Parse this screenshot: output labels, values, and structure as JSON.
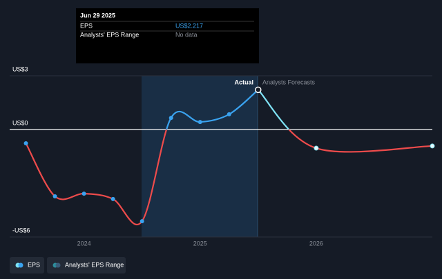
{
  "chart_data": {
    "type": "line",
    "ylim": [
      -6,
      3
    ],
    "yticks": [
      {
        "value": 3,
        "label": "US$3"
      },
      {
        "value": 0,
        "label": "US$0"
      },
      {
        "value": -6,
        "label": "-US$6"
      }
    ],
    "xlim": [
      2023.36,
      2027.0
    ],
    "xticks": [
      2024,
      2025,
      2026
    ],
    "grid": true,
    "annotations": [
      "Actual",
      "Analysts Forecasts"
    ],
    "series": [
      {
        "name": "EPS",
        "color": "#3aa3f0",
        "negative_color": "#ee4b4b",
        "x": [
          2023.5,
          2023.75,
          2024.0,
          2024.25,
          2024.5,
          2024.75,
          2025.0,
          2025.25,
          2025.5
        ],
        "values": [
          -0.77,
          -3.73,
          -3.58,
          -3.88,
          -5.12,
          0.65,
          0.42,
          0.85,
          2.217
        ]
      },
      {
        "name": "Analysts Forecasts",
        "color": "#7fe3f5",
        "negative_color": "#ee4b4b",
        "x": [
          2025.5,
          2026.0,
          2027.0
        ],
        "values": [
          2.217,
          -1.04,
          -0.92
        ]
      }
    ],
    "legend": [
      "EPS",
      "Analysts' EPS Range"
    ],
    "tooltip": {
      "date": "Jun 29 2025",
      "rows": [
        {
          "label": "EPS",
          "value": "US$2.217"
        },
        {
          "label": "Analysts' EPS Range",
          "value": "No data"
        }
      ]
    }
  }
}
